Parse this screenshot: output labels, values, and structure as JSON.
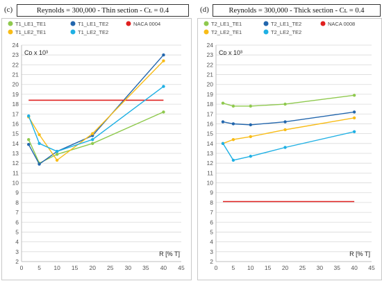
{
  "panels": [
    {
      "tag": "(c)",
      "title": "Reynolds = 300,000 - Thin section - Cʟ = 0.4",
      "ylabel": "Cᴅ x 10³",
      "xlabel": "R [% T]",
      "chart_data": {
        "type": "line",
        "xlim": [
          0,
          45
        ],
        "ylim": [
          2,
          24
        ],
        "xticks": [
          0,
          5,
          10,
          15,
          20,
          25,
          30,
          35,
          40,
          45
        ],
        "yticks": [
          2,
          3,
          4,
          5,
          6,
          7,
          8,
          9,
          10,
          11,
          12,
          13,
          14,
          15,
          16,
          17,
          18,
          19,
          20,
          21,
          22,
          23,
          24
        ],
        "grid": "horizontal",
        "legend_position": "top",
        "series": [
          {
            "name": "T1_LE1_TE1",
            "color": "#8fc94e",
            "markers": true,
            "x": [
              2,
              5,
              10,
              20,
              40
            ],
            "y": [
              14.4,
              12.0,
              12.9,
              14.0,
              17.2
            ]
          },
          {
            "name": "T1_LE1_TE2",
            "color": "#2266ad",
            "markers": true,
            "x": [
              2,
              5,
              10,
              20,
              40
            ],
            "y": [
              13.9,
              11.9,
              13.2,
              14.8,
              23.0
            ]
          },
          {
            "name": "NACA 0004",
            "color": "#e0201f",
            "markers": false,
            "x": [
              2,
              40
            ],
            "y": [
              18.4,
              18.4
            ]
          },
          {
            "name": "T1_LE2_TE1",
            "color": "#f8bc17",
            "markers": true,
            "x": [
              2,
              5,
              10,
              20,
              40
            ],
            "y": [
              16.7,
              14.9,
              12.3,
              15.0,
              22.4
            ]
          },
          {
            "name": "T1_LE2_TE2",
            "color": "#1fb0e4",
            "markers": true,
            "x": [
              2,
              5,
              10,
              20,
              40
            ],
            "y": [
              16.8,
              14.0,
              13.2,
              14.4,
              19.8
            ]
          }
        ]
      }
    },
    {
      "tag": "(d)",
      "title": "Reynolds = 300,000 - Thick section - Cʟ = 0.4",
      "ylabel": "Cᴅ x 10³",
      "xlabel": "R [% T]",
      "chart_data": {
        "type": "line",
        "xlim": [
          0,
          45
        ],
        "ylim": [
          2,
          24
        ],
        "xticks": [
          0,
          5,
          10,
          15,
          20,
          25,
          30,
          35,
          40,
          45
        ],
        "yticks": [
          2,
          3,
          4,
          5,
          6,
          7,
          8,
          9,
          10,
          11,
          12,
          13,
          14,
          15,
          16,
          17,
          18,
          19,
          20,
          21,
          22,
          23,
          24
        ],
        "grid": "horizontal",
        "legend_position": "top",
        "series": [
          {
            "name": "T2_LE1_TE1",
            "color": "#8fc94e",
            "markers": true,
            "x": [
              2,
              5,
              10,
              20,
              40
            ],
            "y": [
              18.1,
              17.8,
              17.8,
              18.0,
              18.9
            ]
          },
          {
            "name": "T2_LE1_TE2",
            "color": "#2266ad",
            "markers": true,
            "x": [
              2,
              5,
              10,
              20,
              40
            ],
            "y": [
              16.2,
              16.0,
              15.9,
              16.2,
              17.2
            ]
          },
          {
            "name": "NACA 0008",
            "color": "#e0201f",
            "markers": false,
            "x": [
              2,
              40
            ],
            "y": [
              8.1,
              8.1
            ]
          },
          {
            "name": "T2_LE2_TE1",
            "color": "#f8bc17",
            "markers": true,
            "x": [
              2,
              5,
              10,
              20,
              40
            ],
            "y": [
              14.0,
              14.4,
              14.7,
              15.4,
              16.6
            ]
          },
          {
            "name": "T2_LE2_TE2",
            "color": "#1fb0e4",
            "markers": true,
            "x": [
              2,
              5,
              10,
              20,
              40
            ],
            "y": [
              14.0,
              12.3,
              12.7,
              13.6,
              15.2
            ]
          }
        ]
      }
    }
  ]
}
